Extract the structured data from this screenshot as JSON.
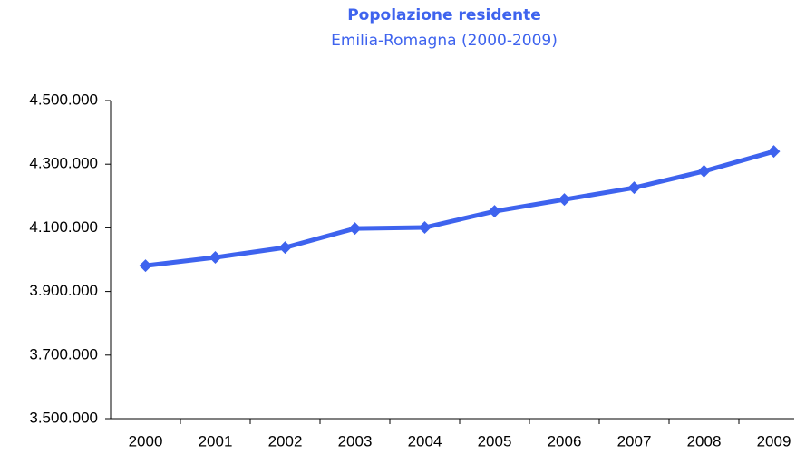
{
  "chart_data": {
    "type": "line",
    "title": "Popolazione residente",
    "subtitle": "Emilia-Romagna (2000-2009)",
    "categories": [
      "2000",
      "2001",
      "2002",
      "2003",
      "2004",
      "2005",
      "2006",
      "2007",
      "2008",
      "2009"
    ],
    "values": [
      3981000,
      4007000,
      4038000,
      4098000,
      4101000,
      4152000,
      4189000,
      4226000,
      4278000,
      4340000
    ],
    "color": "#3e63ee",
    "ylim": [
      3500000,
      4500000
    ],
    "yticks": [
      {
        "value": 3500000,
        "label": "3.500.000"
      },
      {
        "value": 3700000,
        "label": "3.700.000"
      },
      {
        "value": 3900000,
        "label": "3.900.000"
      },
      {
        "value": 4100000,
        "label": "4.100.000"
      },
      {
        "value": 4300000,
        "label": "4.300.000"
      },
      {
        "value": 4500000,
        "label": "4.500.000"
      }
    ],
    "grid": false
  }
}
